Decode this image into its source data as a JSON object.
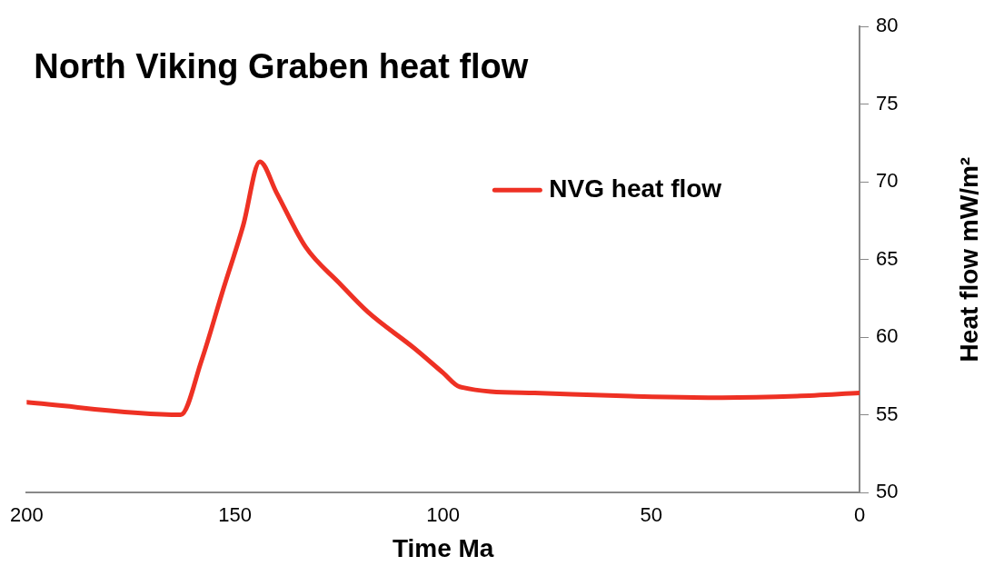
{
  "chart_data": {
    "type": "line",
    "title": "North Viking Graben heat flow",
    "xlabel": "Time Ma",
    "ylabel": "Heat flow mW/m²",
    "x": [
      200,
      163,
      158,
      153,
      148,
      144,
      140,
      133,
      125,
      118,
      107,
      100,
      96,
      78,
      55,
      33,
      15,
      0
    ],
    "series": [
      {
        "name": "NVG heat flow",
        "color": "#ee3124",
        "values": [
          55.8,
          55.0,
          58.5,
          62.9,
          67.2,
          71.3,
          69.3,
          65.8,
          63.5,
          61.6,
          59.3,
          57.7,
          56.8,
          56.4,
          56.2,
          56.1,
          56.2,
          56.4
        ]
      }
    ],
    "xlim": [
      200,
      0
    ],
    "xticks": [
      200,
      150,
      100,
      50,
      0
    ],
    "ylim": [
      50,
      80
    ],
    "yticks": [
      50,
      55,
      60,
      65,
      70,
      75,
      80
    ],
    "grid": false,
    "legend": "top right",
    "marker": "none",
    "line_style": "solid"
  }
}
